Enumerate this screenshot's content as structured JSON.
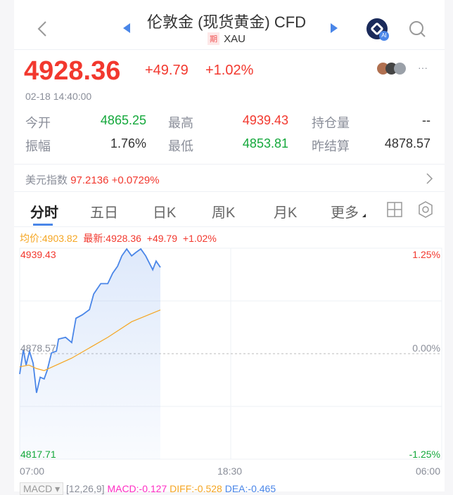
{
  "header": {
    "title": "伦敦金 (现货黄金) CFD",
    "tag": "期",
    "symbol": "XAU",
    "ai_label": "AI"
  },
  "quote": {
    "price": "4928.36",
    "change": "+49.79",
    "change_pct": "+1.02%",
    "time": "02-18 14:40:00",
    "more": "···"
  },
  "stats": [
    {
      "label": "今开",
      "value": "4865.25",
      "color": "green"
    },
    {
      "label": "最高",
      "value": "4939.43",
      "color": "red"
    },
    {
      "label": "持仓量",
      "value": "--",
      "color": "dark"
    },
    {
      "label": "振幅",
      "value": "1.76%",
      "color": "dark"
    },
    {
      "label": "最低",
      "value": "4853.81",
      "color": "green"
    },
    {
      "label": "昨结算",
      "value": "4878.57",
      "color": "dark"
    }
  ],
  "usd_index": {
    "label": "美元指数",
    "value": "97.2136",
    "change": "+0.0729%"
  },
  "tabs": [
    "分时",
    "五日",
    "日K",
    "周K",
    "月K",
    "更多"
  ],
  "legend": {
    "avg": "均价:4903.82",
    "last": "最新:4928.36",
    "change": "+49.79",
    "pct": "+1.02%"
  },
  "indicator": {
    "name": "MACD",
    "params": "[12,26,9]",
    "macd": "MACD:-0.127",
    "diff": "DIFF:-0.528",
    "dea": "DEA:-0.465"
  },
  "colors": {
    "up": "#f2382e",
    "down": "#14a83b",
    "price_line": "#4a86e8",
    "avg_line": "#f5a623"
  },
  "chart_data": {
    "type": "line",
    "y_labels": {
      "top": "4939.43",
      "mid": "4878.57",
      "bottom": "4817.71"
    },
    "pct_labels": {
      "top": "1.25%",
      "mid": "0.00%",
      "bottom": "-1.25%"
    },
    "x_ticks": [
      "07:00",
      "18:30",
      "06:00"
    ],
    "ylim": [
      4817.71,
      4939.43
    ],
    "xlim": [
      "07:00",
      "06:00"
    ],
    "series": [
      {
        "key": "price",
        "x": [
          "07:00",
          "07:12",
          "07:21",
          "07:32",
          "07:44",
          "07:55",
          "08:07",
          "08:20",
          "08:30",
          "08:44",
          "09:00",
          "09:07",
          "09:30",
          "09:50",
          "10:04",
          "10:25",
          "10:48",
          "11:02",
          "11:25",
          "11:48",
          "12:04",
          "12:20",
          "12:34",
          "12:50",
          "13:06",
          "13:20",
          "13:36",
          "13:52",
          "14:15",
          "14:26",
          "14:40"
        ],
        "values": [
          4866.8,
          4881,
          4872,
          4880,
          4873,
          4856,
          4865,
          4864,
          4869,
          4879,
          4880,
          4887,
          4888,
          4885,
          4899,
          4901,
          4904,
          4913,
          4919,
          4919,
          4925,
          4929,
          4935,
          4939,
          4935,
          4937,
          4939,
          4935,
          4927,
          4932,
          4928.36
        ]
      },
      {
        "key": "avg",
        "x": [
          "07:00",
          "07:30",
          "07:55",
          "08:20",
          "09:50",
          "11:48",
          "13:06",
          "14:40"
        ],
        "values": [
          4871,
          4872,
          4870,
          4868.8,
          4876,
          4888,
          4897,
          4903.82
        ]
      }
    ]
  }
}
